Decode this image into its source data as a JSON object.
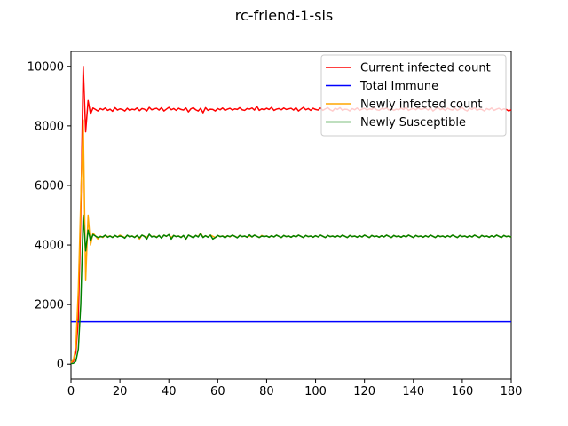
{
  "chart_data": {
    "type": "line",
    "title": "rc-friend-1-sis",
    "xlabel": "",
    "ylabel": "",
    "xlim": [
      0,
      180
    ],
    "ylim": [
      -500,
      10500
    ],
    "x_ticks": [
      0,
      20,
      40,
      60,
      80,
      100,
      120,
      140,
      160,
      180
    ],
    "y_ticks": [
      0,
      2000,
      4000,
      6000,
      8000,
      10000
    ],
    "grid": false,
    "legend_position": "top-right",
    "x": [
      0,
      1,
      2,
      3,
      4,
      5,
      6,
      7,
      8,
      9,
      10,
      11,
      12,
      13,
      14,
      15,
      16,
      17,
      18,
      19,
      20,
      21,
      22,
      23,
      24,
      25,
      26,
      27,
      28,
      29,
      30,
      31,
      32,
      33,
      34,
      35,
      36,
      37,
      38,
      39,
      40,
      41,
      42,
      43,
      44,
      45,
      46,
      47,
      48,
      49,
      50,
      51,
      52,
      53,
      54,
      55,
      56,
      57,
      58,
      59,
      60,
      61,
      62,
      63,
      64,
      65,
      66,
      67,
      68,
      69,
      70,
      71,
      72,
      73,
      74,
      75,
      76,
      77,
      78,
      79,
      80,
      81,
      82,
      83,
      84,
      85,
      86,
      87,
      88,
      89,
      90,
      91,
      92,
      93,
      94,
      95,
      96,
      97,
      98,
      99,
      100,
      101,
      102,
      103,
      104,
      105,
      106,
      107,
      108,
      109,
      110,
      111,
      112,
      113,
      114,
      115,
      116,
      117,
      118,
      119,
      120,
      121,
      122,
      123,
      124,
      125,
      126,
      127,
      128,
      129,
      130,
      131,
      132,
      133,
      134,
      135,
      136,
      137,
      138,
      139,
      140,
      141,
      142,
      143,
      144,
      145,
      146,
      147,
      148,
      149,
      150,
      151,
      152,
      153,
      154,
      155,
      156,
      157,
      158,
      159,
      160,
      161,
      162,
      163,
      164,
      165,
      166,
      167,
      168,
      169,
      170,
      171,
      172,
      173,
      174,
      175,
      176,
      177,
      178,
      179,
      180
    ],
    "series": [
      {
        "name": "Current infected count",
        "color": "#ff0000",
        "values": [
          50,
          100,
          400,
          1500,
          5000,
          10000,
          7800,
          8850,
          8400,
          8600,
          8550,
          8500,
          8580,
          8540,
          8600,
          8520,
          8560,
          8490,
          8610,
          8530,
          8570,
          8550,
          8500,
          8590,
          8520,
          8560,
          8540,
          8600,
          8510,
          8580,
          8560,
          8500,
          8620,
          8540,
          8570,
          8590,
          8530,
          8610,
          8500,
          8560,
          8620,
          8540,
          8580,
          8520,
          8590,
          8550,
          8530,
          8600,
          8470,
          8570,
          8610,
          8540,
          8500,
          8590,
          8440,
          8610,
          8520,
          8560,
          8550,
          8500,
          8580,
          8540,
          8600,
          8520,
          8560,
          8590,
          8530,
          8570,
          8550,
          8610,
          8540,
          8520,
          8580,
          8560,
          8600,
          8530,
          8650,
          8520,
          8570,
          8540,
          8590,
          8550,
          8620,
          8520,
          8560,
          8580,
          8540,
          8600,
          8550,
          8570,
          8590,
          8530,
          8610,
          8500,
          8560,
          8620,
          8540,
          8580,
          8520,
          8590,
          8550,
          8530,
          8600,
          8520,
          8570,
          8610,
          8540,
          8500,
          8590,
          8550,
          8610,
          8520,
          8560,
          8550,
          8500,
          8580,
          8540,
          8600,
          8520,
          8560,
          8590,
          8530,
          8570,
          8550,
          8610,
          8540,
          8520,
          8580,
          8560,
          8600,
          8530,
          8570,
          8520,
          8560,
          8540,
          8590,
          8550,
          8620,
          8520,
          8560,
          8580,
          8540,
          8600,
          8550,
          8570,
          8590,
          8530,
          8610,
          8500,
          8560,
          8620,
          8540,
          8580,
          8520,
          8590,
          8550,
          8530,
          8600,
          8520,
          8570,
          8610,
          8540,
          8500,
          8590,
          8550,
          8610,
          8520,
          8560,
          8550,
          8500,
          8580,
          8540,
          8600,
          8520,
          8560,
          8590,
          8530,
          8570,
          8550,
          8500,
          8540
        ]
      },
      {
        "name": "Total Immune",
        "color": "#0000ff",
        "values": [
          1420,
          1420,
          1420,
          1420,
          1420,
          1420,
          1420,
          1420,
          1420,
          1420,
          1420,
          1420,
          1420,
          1420,
          1420,
          1420,
          1420,
          1420,
          1420,
          1420,
          1420,
          1420,
          1420,
          1420,
          1420,
          1420,
          1420,
          1420,
          1420,
          1420,
          1420,
          1420,
          1420,
          1420,
          1420,
          1420,
          1420,
          1420,
          1420,
          1420,
          1420,
          1420,
          1420,
          1420,
          1420,
          1420,
          1420,
          1420,
          1420,
          1420,
          1420,
          1420,
          1420,
          1420,
          1420,
          1420,
          1420,
          1420,
          1420,
          1420,
          1420,
          1420,
          1420,
          1420,
          1420,
          1420,
          1420,
          1420,
          1420,
          1420,
          1420,
          1420,
          1420,
          1420,
          1420,
          1420,
          1420,
          1420,
          1420,
          1420,
          1420,
          1420,
          1420,
          1420,
          1420,
          1420,
          1420,
          1420,
          1420,
          1420,
          1420,
          1420,
          1420,
          1420,
          1420,
          1420,
          1420,
          1420,
          1420,
          1420,
          1420,
          1420,
          1420,
          1420,
          1420,
          1420,
          1420,
          1420,
          1420,
          1420,
          1420,
          1420,
          1420,
          1420,
          1420,
          1420,
          1420,
          1420,
          1420,
          1420,
          1420,
          1420,
          1420,
          1420,
          1420,
          1420,
          1420,
          1420,
          1420,
          1420,
          1420,
          1420,
          1420,
          1420,
          1420,
          1420,
          1420,
          1420,
          1420,
          1420,
          1420,
          1420,
          1420,
          1420,
          1420,
          1420,
          1420,
          1420,
          1420,
          1420,
          1420,
          1420,
          1420,
          1420,
          1420,
          1420,
          1420,
          1420,
          1420,
          1420,
          1420,
          1420,
          1420,
          1420,
          1420,
          1420,
          1420,
          1420,
          1420,
          1420,
          1420,
          1420,
          1420,
          1420,
          1420,
          1420,
          1420,
          1420,
          1420,
          1420,
          1420
        ]
      },
      {
        "name": "Newly infected count",
        "color": "#ffa500",
        "values": [
          50,
          150,
          600,
          2500,
          5500,
          8200,
          2800,
          5000,
          4000,
          4400,
          4300,
          4200,
          4300,
          4250,
          4320,
          4280,
          4300,
          4260,
          4310,
          4270,
          4330,
          4290,
          4250,
          4320,
          4280,
          4300,
          4260,
          4310,
          4200,
          4330,
          4290,
          4250,
          4350,
          4280,
          4300,
          4270,
          4310,
          4240,
          4330,
          4290,
          4350,
          4250,
          4320,
          4280,
          4300,
          4260,
          4310,
          4200,
          4330,
          4290,
          4250,
          4320,
          4280,
          4400,
          4260,
          4310,
          4270,
          4330,
          4290,
          4250,
          4320,
          4280,
          4300,
          4260,
          4310,
          4270,
          4330,
          4290,
          4250,
          4320,
          4280,
          4300,
          4260,
          4310,
          4270,
          4330,
          4290,
          4250,
          4320,
          4280,
          4300,
          4260,
          4310,
          4270,
          4330,
          4290,
          4250,
          4320,
          4280,
          4300,
          4260,
          4310,
          4270,
          4330,
          4290,
          4250,
          4320,
          4280,
          4300,
          4260,
          4310,
          4270,
          4330,
          4290,
          4250,
          4320,
          4280,
          4300,
          4260,
          4310,
          4270,
          4330,
          4290,
          4250,
          4320,
          4280,
          4300,
          4260,
          4310,
          4270,
          4330,
          4290,
          4250,
          4320,
          4280,
          4300,
          4260,
          4310,
          4270,
          4330,
          4290,
          4250,
          4320,
          4280,
          4300,
          4260,
          4310,
          4270,
          4330,
          4290,
          4250,
          4320,
          4280,
          4300,
          4260,
          4310,
          4270,
          4330,
          4290,
          4250,
          4320,
          4280,
          4300,
          4260,
          4310,
          4270,
          4330,
          4290,
          4250,
          4320,
          4280,
          4300,
          4260,
          4310,
          4270,
          4330,
          4290,
          4250,
          4320,
          4280,
          4300,
          4260,
          4310,
          4270,
          4330,
          4290,
          4250,
          4320,
          4280,
          4300,
          4260
        ]
      },
      {
        "name": "Newly Susceptible",
        "color": "#008000",
        "values": [
          20,
          30,
          100,
          500,
          2000,
          5000,
          3800,
          4500,
          4150,
          4350,
          4300,
          4250,
          4280,
          4270,
          4330,
          4260,
          4300,
          4250,
          4320,
          4270,
          4300,
          4280,
          4230,
          4330,
          4270,
          4300,
          4250,
          4320,
          4240,
          4330,
          4290,
          4200,
          4360,
          4270,
          4300,
          4250,
          4320,
          4230,
          4330,
          4290,
          4350,
          4200,
          4320,
          4280,
          4300,
          4250,
          4320,
          4200,
          4330,
          4290,
          4240,
          4320,
          4270,
          4380,
          4250,
          4310,
          4260,
          4330,
          4200,
          4250,
          4320,
          4280,
          4300,
          4240,
          4310,
          4280,
          4330,
          4290,
          4240,
          4320,
          4280,
          4300,
          4260,
          4340,
          4270,
          4330,
          4290,
          4250,
          4300,
          4280,
          4300,
          4260,
          4310,
          4270,
          4330,
          4290,
          4250,
          4320,
          4280,
          4300,
          4260,
          4310,
          4270,
          4330,
          4290,
          4250,
          4320,
          4280,
          4300,
          4260,
          4310,
          4270,
          4330,
          4290,
          4250,
          4320,
          4280,
          4300,
          4260,
          4310,
          4270,
          4330,
          4290,
          4250,
          4320,
          4280,
          4300,
          4260,
          4310,
          4270,
          4330,
          4290,
          4250,
          4320,
          4280,
          4300,
          4260,
          4310,
          4270,
          4330,
          4290,
          4250,
          4320,
          4280,
          4300,
          4260,
          4310,
          4270,
          4330,
          4290,
          4250,
          4320,
          4280,
          4300,
          4260,
          4310,
          4270,
          4330,
          4290,
          4250,
          4320,
          4280,
          4300,
          4260,
          4310,
          4270,
          4330,
          4290,
          4250,
          4320,
          4280,
          4300,
          4260,
          4310,
          4270,
          4330,
          4290,
          4250,
          4320,
          4280,
          4300,
          4260,
          4310,
          4270,
          4330,
          4290,
          4250,
          4320,
          4280,
          4300,
          4260
        ]
      }
    ]
  }
}
